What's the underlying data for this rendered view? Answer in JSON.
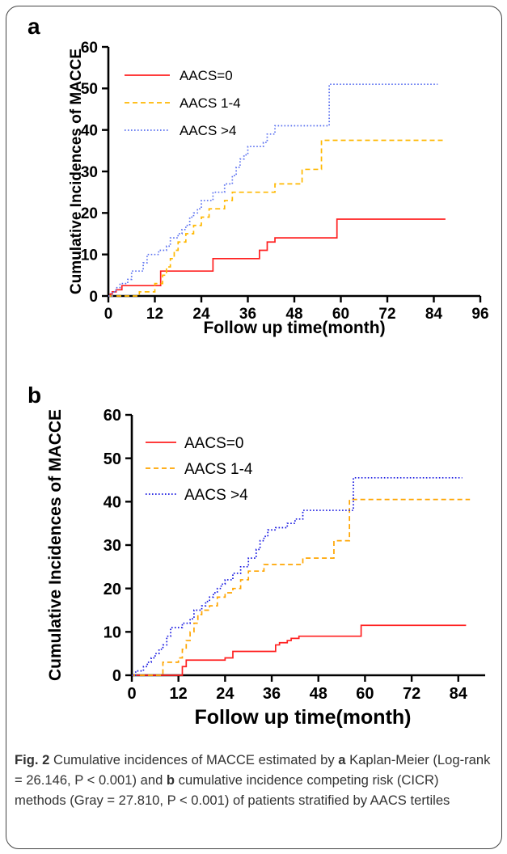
{
  "chart_data": [
    {
      "panel_label": "a",
      "type": "line",
      "step": true,
      "xlabel": "Follow up time(month)",
      "ylabel": "Cumulative Incidences of MACCE",
      "xlim": [
        0,
        96
      ],
      "ylim": [
        0,
        60
      ],
      "xticks": [
        0,
        12,
        24,
        36,
        48,
        60,
        72,
        84,
        96
      ],
      "yticks": [
        0,
        10,
        20,
        30,
        40,
        50,
        60
      ],
      "grid": false,
      "legend_position": "top-left",
      "series": [
        {
          "name": "AACS=0",
          "color": "#ff2020",
          "style": "solid",
          "x": [
            0,
            0.5,
            1,
            2,
            3.5,
            13,
            13.5,
            24,
            27,
            38,
            39,
            40,
            41,
            43,
            58,
            59,
            87
          ],
          "y": [
            0,
            0.5,
            1,
            1.5,
            2.5,
            2.5,
            6,
            6,
            9,
            9,
            11,
            11,
            13,
            14,
            14,
            18.5,
            18.5
          ]
        },
        {
          "name": "AACS 1-4",
          "color": "#ffb800",
          "style": "dashed",
          "x": [
            0,
            7.5,
            8,
            12,
            14,
            15,
            16,
            17,
            18,
            20,
            22,
            24,
            26,
            28,
            30,
            32,
            36,
            41,
            43,
            48,
            50,
            52,
            55,
            56,
            87
          ],
          "y": [
            0,
            0,
            1,
            3,
            5,
            7,
            9,
            11,
            13,
            15,
            17,
            19,
            21,
            21,
            23,
            25,
            25,
            25,
            27,
            27,
            30.5,
            30.5,
            37.5,
            37.5,
            37.5
          ]
        },
        {
          "name": "AACS >4",
          "color": "#5a70f0",
          "style": "dotted",
          "x": [
            0,
            1,
            2,
            3,
            5,
            6,
            8,
            9,
            10,
            12,
            13,
            15,
            16,
            18,
            19,
            20,
            21,
            22,
            23,
            24,
            27,
            28,
            30,
            32,
            33,
            34,
            35,
            36,
            38,
            40,
            41,
            43,
            45,
            47,
            53,
            56,
            57,
            85
          ],
          "y": [
            0,
            1,
            2,
            3,
            4,
            6,
            6,
            8,
            10,
            10,
            11,
            12,
            14,
            15,
            16,
            17,
            19,
            20,
            21,
            23,
            25,
            25,
            27,
            29,
            31,
            33,
            34,
            36,
            36,
            37,
            39,
            41,
            41,
            41,
            41,
            41,
            51,
            51
          ]
        }
      ]
    },
    {
      "panel_label": "b",
      "type": "line",
      "step": true,
      "xlabel": "Follow up time(month)",
      "ylabel": "Cumulative Incidences of MACCE",
      "xlim": [
        0,
        88
      ],
      "ylim": [
        0,
        60
      ],
      "xticks": [
        0,
        12,
        24,
        36,
        48,
        60,
        72,
        84
      ],
      "yticks": [
        0,
        10,
        20,
        30,
        40,
        50,
        60
      ],
      "grid": false,
      "legend_position": "top-left",
      "series": [
        {
          "name": "AACS=0",
          "color": "#ff2020",
          "style": "solid",
          "x": [
            0,
            12,
            13,
            14,
            20,
            23,
            24,
            26,
            27,
            37,
            38,
            40,
            41,
            43,
            45,
            58,
            59,
            86
          ],
          "y": [
            0,
            0,
            2,
            3.5,
            3.5,
            3.5,
            4,
            5.5,
            5.5,
            7,
            7.5,
            8,
            8.5,
            9,
            9,
            9,
            11.5,
            11.5
          ]
        },
        {
          "name": "AACS 1-4",
          "color": "#ffa500",
          "style": "dashed",
          "x": [
            0,
            7,
            8,
            11,
            12,
            13,
            14,
            15,
            16,
            17,
            18,
            19,
            20,
            22,
            24,
            26,
            28,
            30,
            32,
            34,
            36,
            42,
            44,
            52,
            55,
            56,
            60,
            87
          ],
          "y": [
            0,
            0,
            3,
            3,
            4,
            6,
            8,
            10,
            12,
            14,
            15,
            15,
            16,
            18,
            19,
            20,
            22,
            24,
            24,
            25.5,
            25.5,
            25.5,
            27,
            31,
            31,
            40.5,
            40.5,
            40.5
          ]
        },
        {
          "name": "AACS >4",
          "color": "#1515e0",
          "style": "dotted",
          "x": [
            0,
            1,
            2,
            3,
            4,
            5,
            6,
            7,
            8,
            9,
            10,
            12,
            13,
            15,
            16,
            18,
            19,
            20,
            21,
            22,
            23,
            24,
            26,
            27,
            28,
            30,
            32,
            33,
            34,
            35,
            37,
            40,
            42,
            44,
            50,
            56,
            57,
            85
          ],
          "y": [
            0,
            1,
            1,
            2,
            3,
            4,
            5,
            6,
            7,
            9,
            11,
            11,
            12,
            13,
            15,
            16,
            17,
            18,
            19,
            20,
            21,
            22,
            23.5,
            23.5,
            25,
            27,
            29,
            31,
            32,
            33.5,
            34,
            35,
            36,
            38,
            38,
            38,
            45.5,
            45.5
          ]
        }
      ]
    }
  ],
  "caption": {
    "fig_label": "Fig. 2",
    "seg1": " Cumulative incidences of MACCE estimated by ",
    "a_label": "a",
    "seg2": " Kaplan-Meier (Log-rank = 26.146, P < 0.001) and ",
    "b_label": "b",
    "seg3": " cumulative incidence competing risk (CICR) methods (Gray = 27.810, P < 0.001) of patients stratified by AACS tertiles"
  }
}
